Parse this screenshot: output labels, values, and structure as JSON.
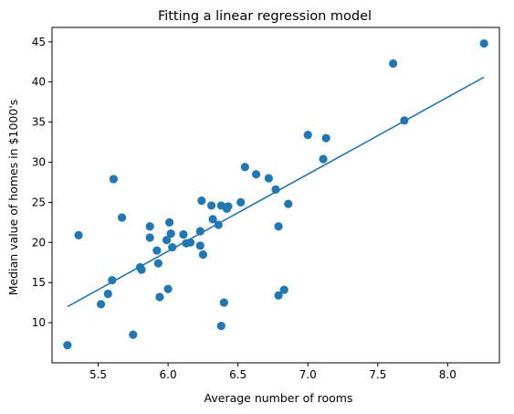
{
  "chart_data": {
    "type": "scatter",
    "title": "Fitting a linear regression model",
    "xlabel": "Average number of rooms",
    "ylabel": "Median value of homes in $1000's",
    "xlim": [
      5.17,
      8.37
    ],
    "ylim": [
      5.0,
      46.8
    ],
    "xticks": [
      5.5,
      6.0,
      6.5,
      7.0,
      7.5,
      8.0
    ],
    "xtick_labels": [
      "5.5",
      "6.0",
      "6.5",
      "7.0",
      "7.5",
      "8.0"
    ],
    "yticks": [
      10,
      15,
      20,
      25,
      30,
      35,
      40,
      45
    ],
    "ytick_labels": [
      "10",
      "15",
      "20",
      "25",
      "30",
      "35",
      "40",
      "45"
    ],
    "grid": false,
    "colors": {
      "points": "#1f77b4",
      "line": "#1f77b4",
      "axes": "#000000"
    },
    "series": [
      {
        "type": "scatter",
        "x": [
          5.28,
          5.36,
          5.52,
          5.57,
          5.6,
          5.61,
          5.67,
          5.75,
          5.8,
          5.81,
          5.87,
          5.87,
          5.92,
          5.93,
          5.94,
          5.99,
          6.0,
          6.01,
          6.02,
          6.03,
          6.11,
          6.13,
          6.16,
          6.23,
          6.23,
          6.24,
          6.25,
          6.31,
          6.32,
          6.36,
          6.38,
          6.38,
          6.4,
          6.42,
          6.43,
          6.52,
          6.55,
          6.63,
          6.72,
          6.77,
          6.79,
          6.79,
          6.83,
          6.86,
          7.0,
          7.11,
          7.13,
          7.61,
          7.69,
          8.26
        ],
        "y": [
          7.2,
          20.9,
          12.3,
          13.6,
          15.3,
          27.9,
          23.1,
          8.5,
          16.9,
          16.6,
          20.6,
          22.0,
          19.0,
          17.4,
          13.2,
          20.3,
          14.2,
          22.5,
          21.1,
          19.4,
          21.0,
          19.9,
          20.0,
          19.6,
          21.4,
          25.2,
          18.5,
          24.6,
          22.9,
          22.2,
          9.6,
          24.6,
          12.5,
          24.2,
          24.5,
          25.0,
          29.4,
          28.5,
          28.0,
          26.6,
          13.4,
          22.0,
          14.1,
          24.8,
          33.4,
          30.4,
          33.0,
          42.3,
          35.2,
          44.8
        ]
      },
      {
        "type": "line",
        "x": [
          5.28,
          8.26
        ],
        "y": [
          12.0,
          40.6
        ]
      }
    ]
  }
}
